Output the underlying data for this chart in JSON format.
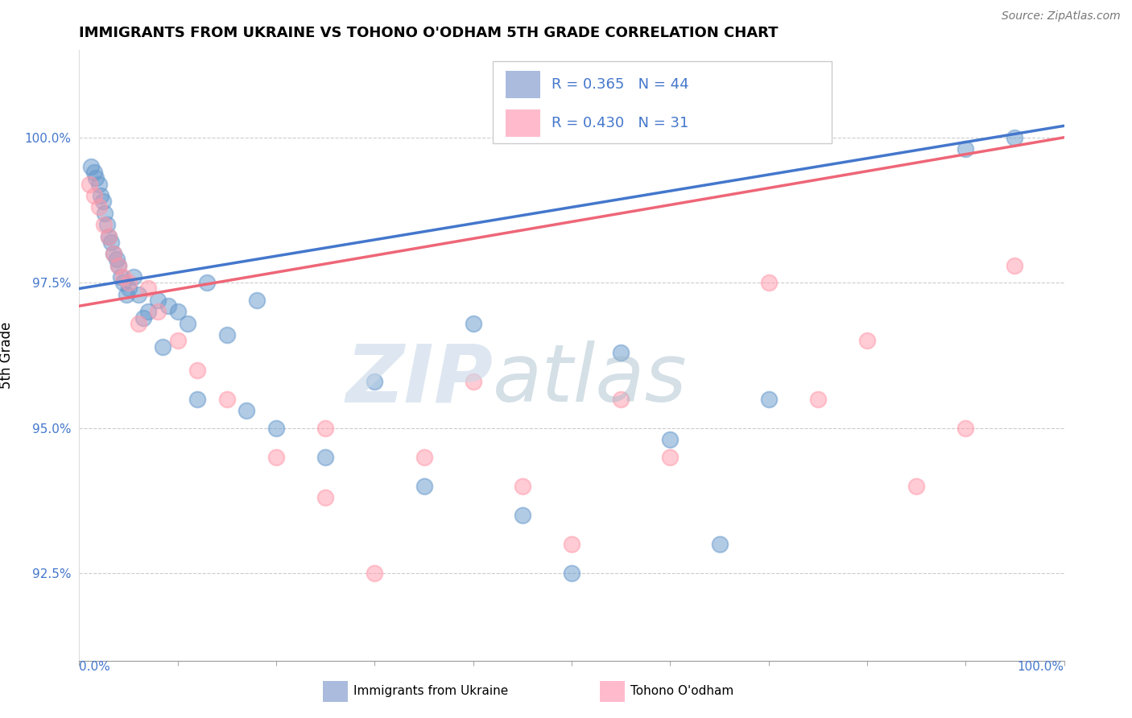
{
  "title": "IMMIGRANTS FROM UKRAINE VS TOHONO O'ODHAM 5TH GRADE CORRELATION CHART",
  "source": "Source: ZipAtlas.com",
  "ylabel": "5th Grade",
  "y_ticks": [
    92.5,
    95.0,
    97.5,
    100.0
  ],
  "xlim": [
    0.0,
    100.0
  ],
  "ylim": [
    91.0,
    101.5
  ],
  "legend_blue_R": "R = 0.365",
  "legend_blue_N": "N = 44",
  "legend_pink_R": "R = 0.430",
  "legend_pink_N": "N = 31",
  "legend_label_blue": "Immigrants from Ukraine",
  "legend_label_pink": "Tohono O'odham",
  "blue_color": "#6699CC",
  "pink_color": "#FF99AA",
  "blue_line_color": "#4477CC",
  "pink_line_color": "#EE6677",
  "blue_scatter_x": [
    1.2,
    1.5,
    1.7,
    2.0,
    2.2,
    2.4,
    2.6,
    2.8,
    3.0,
    3.2,
    3.5,
    3.8,
    4.0,
    4.2,
    4.5,
    5.0,
    5.5,
    6.0,
    7.0,
    8.0,
    9.0,
    10.0,
    11.0,
    13.0,
    15.0,
    18.0,
    20.0,
    25.0,
    30.0,
    35.0,
    40.0,
    45.0,
    50.0,
    55.0,
    60.0,
    65.0,
    70.0,
    8.5,
    12.0,
    17.0,
    4.8,
    6.5,
    90.0,
    95.0
  ],
  "blue_scatter_y": [
    99.5,
    99.4,
    99.3,
    99.2,
    99.0,
    98.9,
    98.7,
    98.5,
    98.3,
    98.2,
    98.0,
    97.9,
    97.8,
    97.6,
    97.5,
    97.4,
    97.6,
    97.3,
    97.0,
    97.2,
    97.1,
    97.0,
    96.8,
    97.5,
    96.6,
    97.2,
    95.0,
    94.5,
    95.8,
    94.0,
    96.8,
    93.5,
    92.5,
    96.3,
    94.8,
    93.0,
    95.5,
    96.4,
    95.5,
    95.3,
    97.3,
    96.9,
    99.8,
    100.0
  ],
  "pink_scatter_x": [
    1.0,
    1.5,
    2.0,
    2.5,
    3.0,
    3.5,
    4.0,
    4.5,
    5.0,
    6.0,
    7.0,
    8.0,
    10.0,
    12.0,
    15.0,
    20.0,
    25.0,
    30.0,
    35.0,
    40.0,
    45.0,
    50.0,
    55.0,
    60.0,
    70.0,
    75.0,
    80.0,
    85.0,
    90.0,
    95.0,
    25.0
  ],
  "pink_scatter_y": [
    99.2,
    99.0,
    98.8,
    98.5,
    98.3,
    98.0,
    97.8,
    97.6,
    97.5,
    96.8,
    97.4,
    97.0,
    96.5,
    96.0,
    95.5,
    94.5,
    95.0,
    92.5,
    94.5,
    95.8,
    94.0,
    93.0,
    95.5,
    94.5,
    97.5,
    95.5,
    96.5,
    94.0,
    95.0,
    97.8,
    93.8
  ],
  "blue_line_x": [
    0.0,
    100.0
  ],
  "blue_line_y": [
    97.4,
    100.2
  ],
  "pink_line_x": [
    0.0,
    100.0
  ],
  "pink_line_y": [
    97.1,
    100.0
  ]
}
